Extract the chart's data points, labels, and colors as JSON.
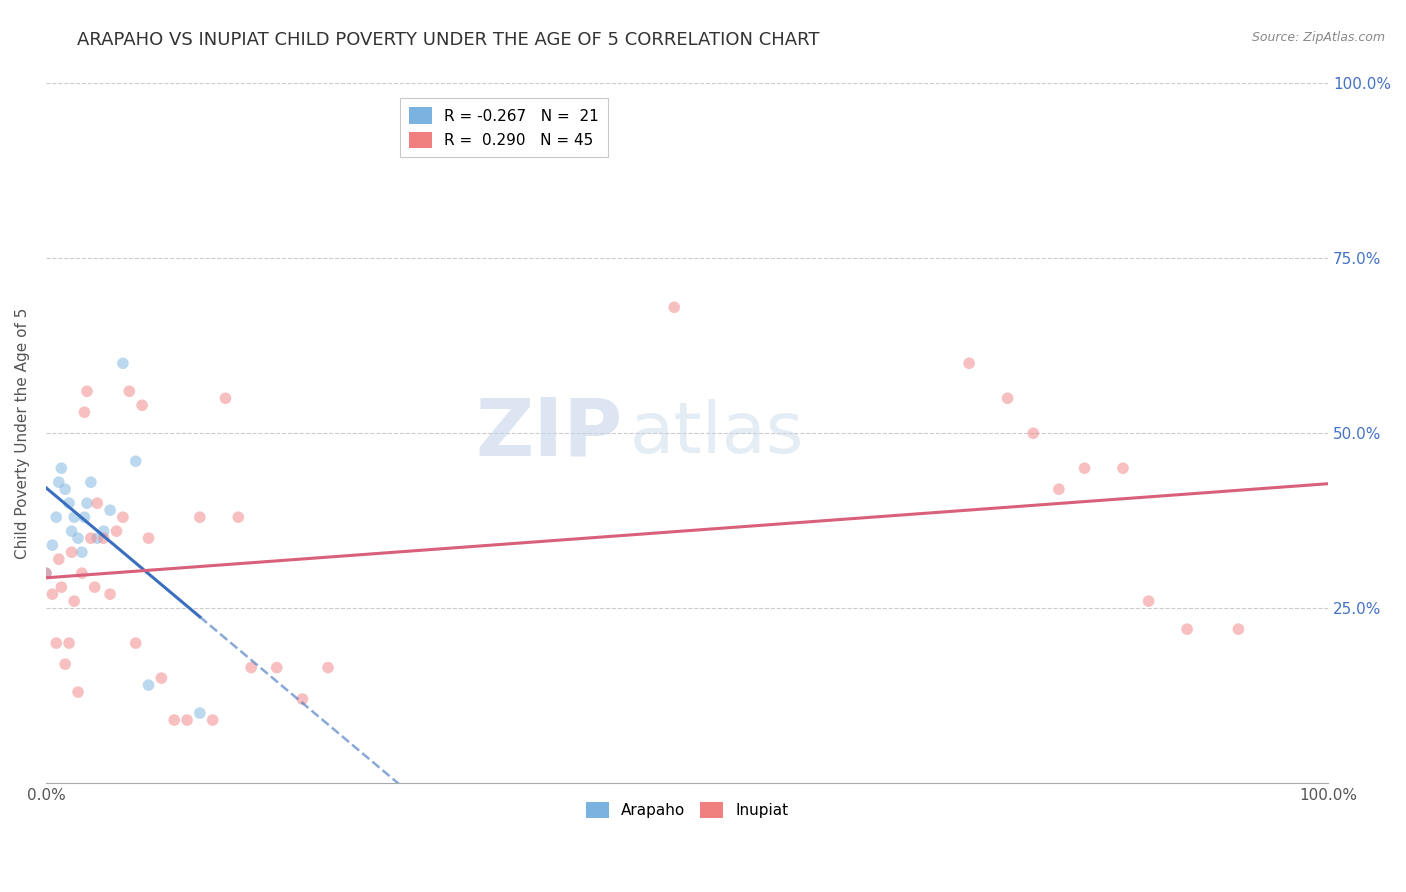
{
  "title": "ARAPAHO VS INUPIAT CHILD POVERTY UNDER THE AGE OF 5 CORRELATION CHART",
  "source": "Source: ZipAtlas.com",
  "ylabel": "Child Poverty Under the Age of 5",
  "watermark_zip": "ZIP",
  "watermark_atlas": "atlas",
  "arapaho_color": "#7ab3e0",
  "inupiat_color": "#f08080",
  "arapaho_line_color": "#3a6fbf",
  "inupiat_line_color": "#d9607a",
  "arapaho_x": [
    0.0,
    0.005,
    0.008,
    0.01,
    0.012,
    0.015,
    0.018,
    0.02,
    0.022,
    0.025,
    0.028,
    0.03,
    0.032,
    0.035,
    0.04,
    0.045,
    0.05,
    0.06,
    0.07,
    0.08,
    0.12
  ],
  "arapaho_y": [
    0.3,
    0.34,
    0.38,
    0.43,
    0.45,
    0.42,
    0.4,
    0.36,
    0.38,
    0.35,
    0.33,
    0.38,
    0.4,
    0.43,
    0.35,
    0.36,
    0.39,
    0.6,
    0.46,
    0.14,
    0.1
  ],
  "inupiat_x": [
    0.0,
    0.005,
    0.008,
    0.01,
    0.012,
    0.015,
    0.018,
    0.02,
    0.022,
    0.025,
    0.028,
    0.03,
    0.032,
    0.035,
    0.038,
    0.04,
    0.045,
    0.05,
    0.055,
    0.06,
    0.065,
    0.07,
    0.075,
    0.08,
    0.09,
    0.1,
    0.11,
    0.12,
    0.13,
    0.14,
    0.15,
    0.16,
    0.18,
    0.2,
    0.22,
    0.49,
    0.72,
    0.75,
    0.77,
    0.79,
    0.81,
    0.84,
    0.86,
    0.89,
    0.93
  ],
  "inupiat_y": [
    0.3,
    0.27,
    0.2,
    0.32,
    0.28,
    0.17,
    0.2,
    0.33,
    0.26,
    0.13,
    0.3,
    0.53,
    0.56,
    0.35,
    0.28,
    0.4,
    0.35,
    0.27,
    0.36,
    0.38,
    0.56,
    0.2,
    0.54,
    0.35,
    0.15,
    0.09,
    0.09,
    0.38,
    0.09,
    0.55,
    0.38,
    0.165,
    0.165,
    0.12,
    0.165,
    0.68,
    0.6,
    0.55,
    0.5,
    0.42,
    0.45,
    0.45,
    0.26,
    0.22,
    0.22
  ],
  "xlim": [
    0.0,
    1.0
  ],
  "ylim": [
    0.0,
    1.0
  ],
  "xticks": [
    0.0,
    1.0
  ],
  "yticks": [
    0.0,
    0.25,
    0.5,
    0.75,
    1.0
  ],
  "xticklabels_left": "0.0%",
  "xticklabels_right": "100.0%",
  "yticklabels": [
    "",
    "25.0%",
    "50.0%",
    "75.0%",
    "100.0%"
  ],
  "marker_size": 70,
  "marker_alpha": 0.5,
  "background_color": "#ffffff",
  "grid_color": "#cccccc",
  "title_fontsize": 13,
  "axis_label_fontsize": 11,
  "tick_fontsize": 11,
  "source_fontsize": 9
}
